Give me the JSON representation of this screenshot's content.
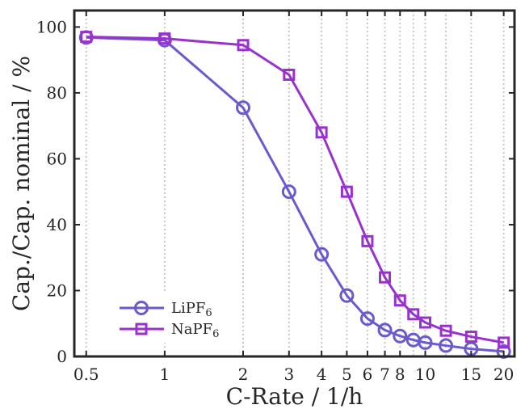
{
  "chart_data": {
    "type": "line",
    "xscale": "log",
    "xlim": [
      0.45,
      22
    ],
    "ylim": [
      0,
      105
    ],
    "grid": "vertical-dotted",
    "legend_position": "bottom-left",
    "xlabel": "C-Rate / 1/h",
    "ylabel": "Cap./Cap. nominal / %",
    "xticks": [
      0.5,
      1,
      2,
      3,
      4,
      5,
      6,
      7,
      8,
      10,
      15,
      20
    ],
    "xtick_labels": [
      "0.5",
      "1",
      "2",
      "3",
      "4",
      "5",
      "6",
      "7",
      "8",
      "10",
      "15",
      "20"
    ],
    "yticks": [
      0,
      20,
      40,
      60,
      80,
      100
    ],
    "ytick_labels": [
      "0",
      "20",
      "40",
      "60",
      "80",
      "100"
    ],
    "grid_x": [
      0.5,
      1,
      2,
      3,
      4,
      5,
      6,
      7,
      8,
      9,
      10,
      12,
      15,
      20
    ],
    "series": [
      {
        "name": "LiPF",
        "name_subscript": "6",
        "marker": "circle",
        "color": "#6a5acd",
        "x": [
          0.5,
          1,
          2,
          3,
          4,
          5,
          6,
          7,
          8,
          9,
          10,
          12,
          15,
          20
        ],
        "y": [
          96.8,
          96.0,
          75.5,
          50.0,
          31.0,
          18.5,
          11.5,
          8.0,
          6.2,
          5.0,
          4.2,
          3.3,
          2.3,
          1.5
        ]
      },
      {
        "name": "NaPF",
        "name_subscript": "6",
        "marker": "square",
        "color": "#9932cc",
        "x": [
          0.5,
          1,
          2,
          3,
          4,
          5,
          6,
          7,
          8,
          9,
          10,
          12,
          15,
          20
        ],
        "y": [
          97.0,
          96.5,
          94.5,
          85.5,
          68.0,
          50.0,
          35.0,
          24.0,
          17.0,
          12.8,
          10.3,
          7.8,
          6.0,
          4.2
        ]
      }
    ]
  }
}
